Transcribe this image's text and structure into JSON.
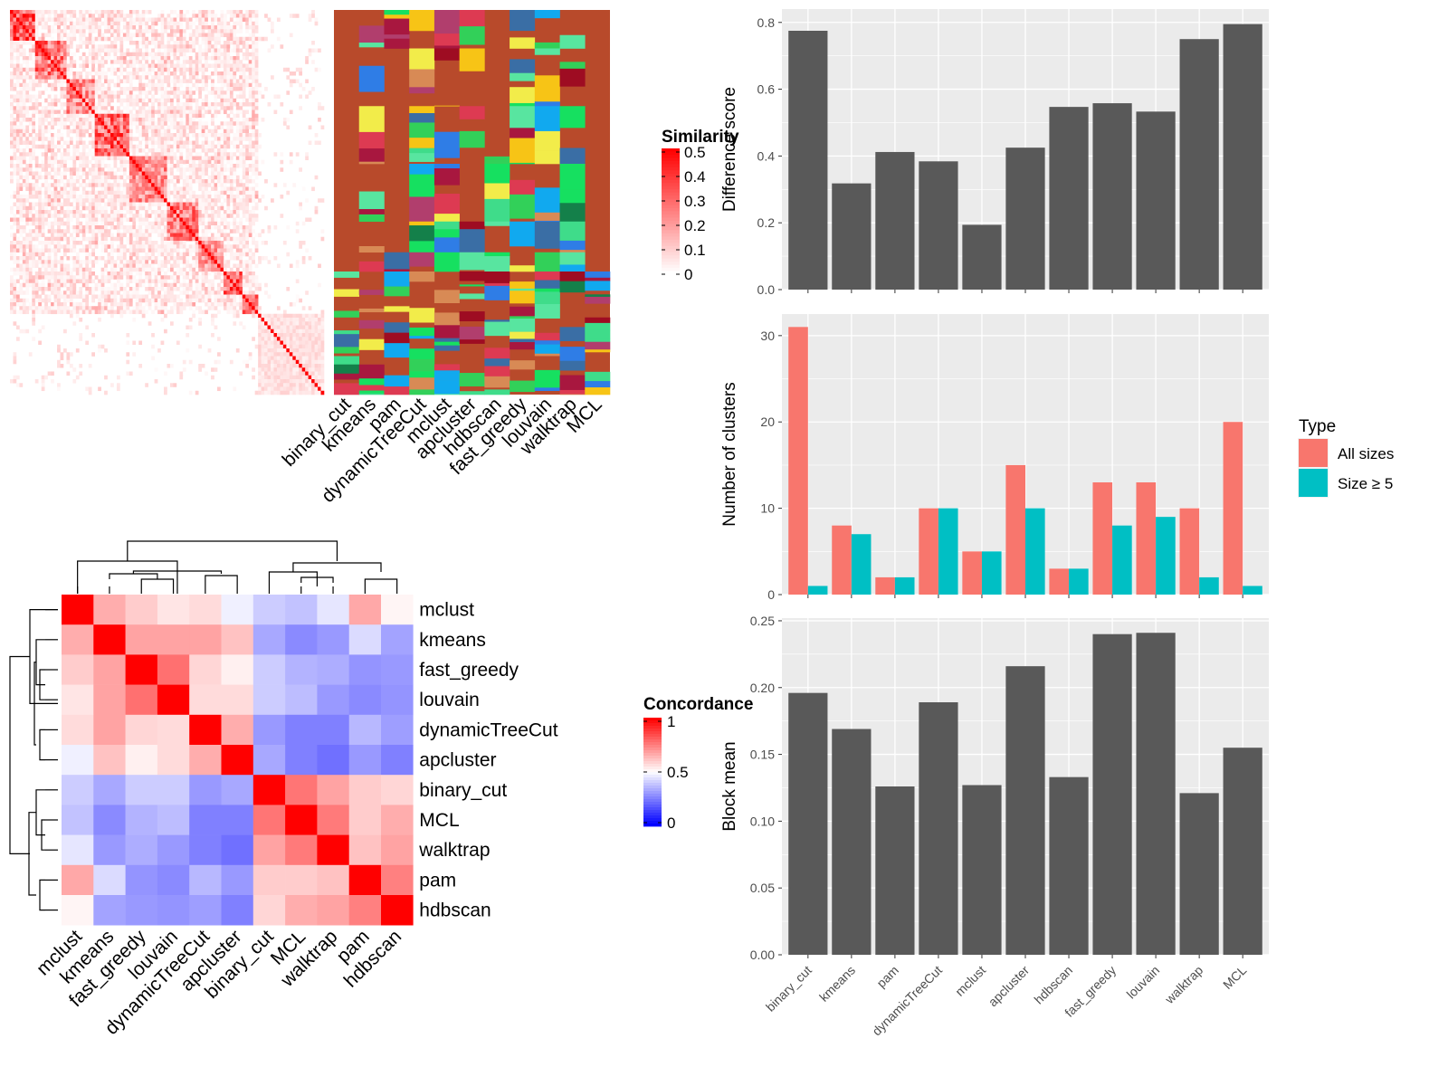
{
  "chart_data": [
    {
      "type": "heatmap",
      "panel": "similarity-matrix",
      "legend_title": "Similarity",
      "legend_ticks": [
        0,
        0.1,
        0.2,
        0.3,
        0.4,
        0.5
      ],
      "scale": [
        0,
        0.5
      ],
      "colors": {
        "low": "#ffffff",
        "high": "#ff0000"
      },
      "n_terms": 100,
      "blocks": [
        {
          "size": 8,
          "within": 0.35
        },
        {
          "size": 10,
          "within": 0.27
        },
        {
          "size": 9,
          "within": 0.22
        },
        {
          "size": 11,
          "within": 0.3
        },
        {
          "size": 12,
          "within": 0.22
        },
        {
          "size": 10,
          "within": 0.25
        },
        {
          "size": 8,
          "within": 0.2
        },
        {
          "size": 6,
          "within": 0.32
        },
        {
          "size": 5,
          "within": 0.25
        },
        {
          "size": 21,
          "within": 0.06
        }
      ]
    },
    {
      "type": "heatmap",
      "panel": "cluster-assignment",
      "categories": [
        "binary_cut",
        "kmeans",
        "pam",
        "dynamicTreeCut",
        "mclust",
        "apcluster",
        "hdbscan",
        "fast_greedy",
        "louvain",
        "walktrap",
        "MCL"
      ],
      "background_color": "#b84a2b"
    },
    {
      "type": "heatmap",
      "panel": "concordance",
      "legend_title": "Concordance",
      "legend_ticks": [
        0,
        0.5,
        1
      ],
      "colors": {
        "low": "#0000ff",
        "mid": "#ffffff",
        "high": "#ff0000"
      },
      "rows": [
        "mclust",
        "kmeans",
        "fast_greedy",
        "louvain",
        "dynamicTreeCut",
        "apcluster",
        "binary_cut",
        "MCL",
        "walktrap",
        "pam",
        "hdbscan"
      ],
      "cols": [
        "mclust",
        "kmeans",
        "fast_greedy",
        "louvain",
        "dynamicTreeCut",
        "apcluster",
        "binary_cut",
        "MCL",
        "walktrap",
        "pam",
        "hdbscan"
      ],
      "values": [
        [
          1.0,
          0.66,
          0.6,
          0.55,
          0.57,
          0.47,
          0.4,
          0.38,
          0.45,
          0.67,
          0.52
        ],
        [
          0.66,
          1.0,
          0.68,
          0.68,
          0.68,
          0.62,
          0.33,
          0.27,
          0.3,
          0.43,
          0.32
        ],
        [
          0.6,
          0.68,
          1.0,
          0.78,
          0.58,
          0.53,
          0.4,
          0.35,
          0.34,
          0.29,
          0.3
        ],
        [
          0.55,
          0.68,
          0.78,
          1.0,
          0.57,
          0.57,
          0.4,
          0.37,
          0.3,
          0.27,
          0.29
        ],
        [
          0.57,
          0.68,
          0.58,
          0.57,
          1.0,
          0.66,
          0.3,
          0.25,
          0.25,
          0.36,
          0.31
        ],
        [
          0.47,
          0.62,
          0.53,
          0.57,
          0.66,
          1.0,
          0.33,
          0.25,
          0.22,
          0.3,
          0.25
        ],
        [
          0.4,
          0.33,
          0.4,
          0.4,
          0.3,
          0.33,
          1.0,
          0.77,
          0.68,
          0.6,
          0.58
        ],
        [
          0.38,
          0.27,
          0.35,
          0.37,
          0.25,
          0.25,
          0.77,
          1.0,
          0.76,
          0.6,
          0.66
        ],
        [
          0.45,
          0.3,
          0.34,
          0.3,
          0.25,
          0.22,
          0.68,
          0.76,
          1.0,
          0.62,
          0.68
        ],
        [
          0.67,
          0.43,
          0.29,
          0.27,
          0.36,
          0.3,
          0.6,
          0.6,
          0.62,
          1.0,
          0.75
        ],
        [
          0.52,
          0.32,
          0.3,
          0.29,
          0.31,
          0.25,
          0.58,
          0.66,
          0.68,
          0.75,
          1.0
        ]
      ]
    },
    {
      "type": "bar",
      "panel": "difference-score",
      "categories": [
        "binary_cut",
        "kmeans",
        "pam",
        "dynamicTreeCut",
        "mclust",
        "apcluster",
        "hdbscan",
        "fast_greedy",
        "louvain",
        "walktrap",
        "MCL"
      ],
      "values": [
        0.775,
        0.318,
        0.412,
        0.384,
        0.194,
        0.425,
        0.547,
        0.558,
        0.533,
        0.75,
        0.795
      ],
      "ylabel": "Difference score",
      "yticks": [
        0.0,
        0.2,
        0.4,
        0.6,
        0.8
      ],
      "ylim": [
        0,
        0.84
      ],
      "color": "#595959"
    },
    {
      "type": "bar",
      "panel": "number-of-clusters",
      "categories": [
        "binary_cut",
        "kmeans",
        "pam",
        "dynamicTreeCut",
        "mclust",
        "apcluster",
        "hdbscan",
        "fast_greedy",
        "louvain",
        "walktrap",
        "MCL"
      ],
      "series": [
        {
          "name": "All sizes",
          "color": "#f8766d",
          "values": [
            31,
            8,
            2,
            10,
            5,
            15,
            3,
            13,
            13,
            10,
            20
          ]
        },
        {
          "name": "Size ≥ 5",
          "color": "#00bfc4",
          "values": [
            1,
            7,
            2,
            10,
            5,
            10,
            3,
            8,
            9,
            2,
            1
          ]
        }
      ],
      "ylabel": "Number of clusters",
      "yticks": [
        0,
        10,
        20,
        30
      ],
      "ylim": [
        0,
        32.5
      ],
      "legend_title": "Type",
      "legend_position": "right"
    },
    {
      "type": "bar",
      "panel": "block-mean",
      "categories": [
        "binary_cut",
        "kmeans",
        "pam",
        "dynamicTreeCut",
        "mclust",
        "apcluster",
        "hdbscan",
        "fast_greedy",
        "louvain",
        "walktrap",
        "MCL"
      ],
      "values": [
        0.196,
        0.169,
        0.126,
        0.189,
        0.127,
        0.216,
        0.133,
        0.24,
        0.241,
        0.121,
        0.155
      ],
      "ylabel": "Block mean",
      "yticks": [
        0.0,
        0.05,
        0.1,
        0.15,
        0.2,
        0.25
      ],
      "ylim": [
        0,
        0.252
      ],
      "color": "#595959"
    }
  ]
}
